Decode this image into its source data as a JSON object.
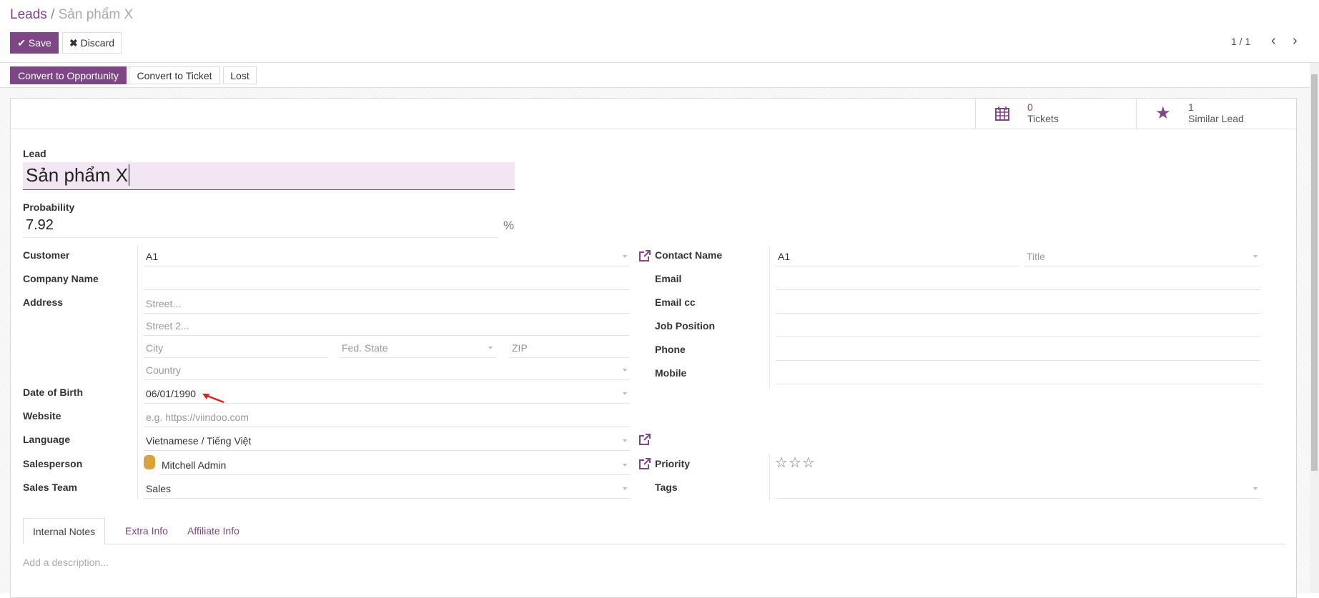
{
  "breadcrumb": {
    "parent": "Leads",
    "separator": "/",
    "current": "Sản phẩm X"
  },
  "toolbar": {
    "save": "Save",
    "discard": "Discard",
    "pager": "1 / 1"
  },
  "actions": {
    "convert_opportunity": "Convert to Opportunity",
    "convert_ticket": "Convert to Ticket",
    "lost": "Lost"
  },
  "stats": [
    {
      "value": "0",
      "label": "Tickets",
      "icon": "calendar-icon"
    },
    {
      "value": "1",
      "label": "Similar Lead",
      "icon": "star-icon"
    }
  ],
  "lead": {
    "label": "Lead",
    "value": "Sản phẩm X"
  },
  "probability": {
    "label": "Probability",
    "value": "7.92",
    "unit": "%"
  },
  "left": {
    "customer": {
      "label": "Customer",
      "value": "A1"
    },
    "company": {
      "label": "Company Name",
      "value": ""
    },
    "address": {
      "label": "Address",
      "street": "Street...",
      "street2": "Street 2...",
      "city": "City",
      "state": "Fed. State",
      "zip": "ZIP",
      "country": "Country"
    },
    "dob": {
      "label": "Date of Birth",
      "value": "06/01/1990"
    },
    "website": {
      "label": "Website",
      "placeholder": "e.g. https://viindoo.com"
    },
    "language": {
      "label": "Language",
      "value": "Vietnamese / Tiếng Việt"
    },
    "salesperson": {
      "label": "Salesperson",
      "value": "Mitchell Admin"
    },
    "team": {
      "label": "Sales Team",
      "value": "Sales"
    }
  },
  "right": {
    "contact": {
      "label": "Contact Name",
      "value": "A1",
      "title_placeholder": "Title"
    },
    "email": {
      "label": "Email"
    },
    "email_cc": {
      "label": "Email cc"
    },
    "job": {
      "label": "Job Position"
    },
    "phone": {
      "label": "Phone"
    },
    "mobile": {
      "label": "Mobile"
    },
    "priority": {
      "label": "Priority",
      "value": 0,
      "max": 3
    },
    "tags": {
      "label": "Tags"
    }
  },
  "tabs": [
    {
      "label": "Internal Notes",
      "active": true
    },
    {
      "label": "Extra Info"
    },
    {
      "label": "Affiliate Info"
    }
  ],
  "notes": {
    "placeholder": "Add a description..."
  },
  "colors": {
    "brand": "#7e4685",
    "annotation_arrow": "#e02020"
  }
}
